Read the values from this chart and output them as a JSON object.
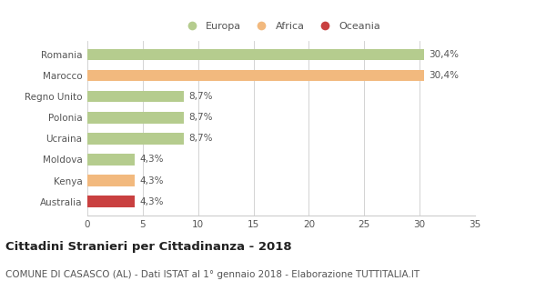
{
  "categories": [
    "Romania",
    "Marocco",
    "Regno Unito",
    "Polonia",
    "Ucraina",
    "Moldova",
    "Kenya",
    "Australia"
  ],
  "values": [
    30.4,
    30.4,
    8.7,
    8.7,
    8.7,
    4.3,
    4.3,
    4.3
  ],
  "labels": [
    "30,4%",
    "30,4%",
    "8,7%",
    "8,7%",
    "8,7%",
    "4,3%",
    "4,3%",
    "4,3%"
  ],
  "colors": [
    "#b5cc8e",
    "#f2b97e",
    "#b5cc8e",
    "#b5cc8e",
    "#b5cc8e",
    "#b5cc8e",
    "#f2b97e",
    "#c94040"
  ],
  "legend": [
    {
      "label": "Europa",
      "color": "#b5cc8e"
    },
    {
      "label": "Africa",
      "color": "#f2b97e"
    },
    {
      "label": "Oceania",
      "color": "#c94040"
    }
  ],
  "xlim": [
    0,
    35
  ],
  "xticks": [
    0,
    5,
    10,
    15,
    20,
    25,
    30,
    35
  ],
  "title": "Cittadini Stranieri per Cittadinanza - 2018",
  "subtitle": "COMUNE DI CASASCO (AL) - Dati ISTAT al 1° gennaio 2018 - Elaborazione TUTTITALIA.IT",
  "title_fontsize": 9.5,
  "subtitle_fontsize": 7.5,
  "label_fontsize": 7.5,
  "tick_fontsize": 7.5,
  "legend_fontsize": 8,
  "bg_color": "#ffffff",
  "grid_color": "#cccccc"
}
